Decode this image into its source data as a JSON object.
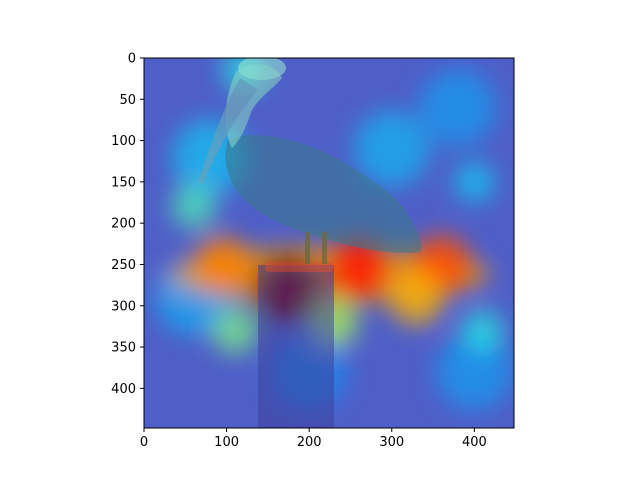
{
  "chart_data": {
    "type": "heatmap",
    "description_type": "image-overlay",
    "xlim": [
      0,
      448
    ],
    "ylim": [
      448,
      0
    ],
    "x_ticks": [
      0,
      100,
      200,
      300,
      400
    ],
    "y_ticks": [
      0,
      50,
      100,
      150,
      200,
      250,
      300,
      350,
      400
    ],
    "x_tick_labels": [
      "0",
      "100",
      "200",
      "300",
      "400"
    ],
    "y_tick_labels": [
      "0",
      "50",
      "100",
      "150",
      "200",
      "250",
      "300",
      "350",
      "400"
    ],
    "colormap": "jet",
    "overlay_alpha": 0.5,
    "hotspots": [
      {
        "x": 175,
        "y": 280,
        "intensity": 1.0
      },
      {
        "x": 260,
        "y": 255,
        "intensity": 0.85
      },
      {
        "x": 360,
        "y": 250,
        "intensity": 0.8
      },
      {
        "x": 95,
        "y": 250,
        "intensity": 0.75
      },
      {
        "x": 330,
        "y": 290,
        "intensity": 0.7
      },
      {
        "x": 60,
        "y": 180,
        "intensity": 0.45
      },
      {
        "x": 230,
        "y": 320,
        "intensity": 0.55
      },
      {
        "x": 110,
        "y": 330,
        "intensity": 0.5
      },
      {
        "x": 400,
        "y": 150,
        "intensity": 0.35
      },
      {
        "x": 120,
        "y": 15,
        "intensity": 0.4
      },
      {
        "x": 410,
        "y": 330,
        "intensity": 0.4
      }
    ],
    "grid": false,
    "legend": "none"
  },
  "image": {
    "subject": "pelican perched on wooden post",
    "background": "#5a62b0"
  }
}
